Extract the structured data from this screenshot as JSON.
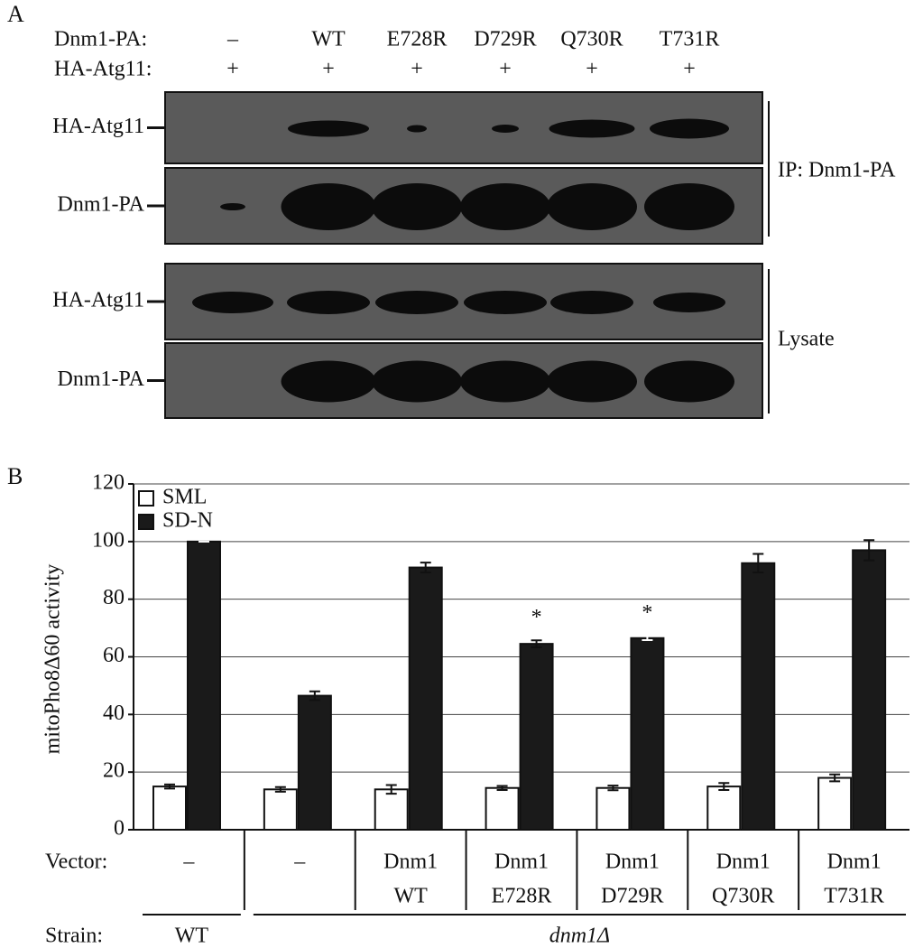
{
  "panel_a": {
    "label": "A",
    "header_rows": [
      {
        "label": "Dnm1-PA:",
        "lanes": [
          "–",
          "WT",
          "E728R",
          "D729R",
          "Q730R",
          "T731R"
        ]
      },
      {
        "label": "HA-Atg11:",
        "lanes": [
          "+",
          "+",
          "+",
          "+",
          "+",
          "+"
        ]
      }
    ],
    "blots": [
      "HA-Atg11",
      "Dnm1-PA",
      "HA-Atg11",
      "Dnm1-PA"
    ],
    "groups": [
      "IP: Dnm1-PA",
      "Lysate"
    ]
  },
  "chart_data": {
    "type": "bar",
    "panel_label": "B",
    "y_label": "mitoPho8Δ60 activity",
    "x_row_label": "Vector:",
    "categories": [
      [
        "–"
      ],
      [
        "–"
      ],
      [
        "Dnm1",
        "WT"
      ],
      [
        "Dnm1",
        "E728R"
      ],
      [
        "Dnm1",
        "D729R"
      ],
      [
        "Dnm1",
        "Q730R"
      ],
      [
        "Dnm1",
        "T731R"
      ]
    ],
    "series": [
      {
        "name": "SML",
        "color": "#ffffff",
        "values": [
          15,
          14,
          14,
          14.5,
          14.5,
          15,
          18
        ],
        "errors": [
          0.7,
          0.8,
          1.5,
          0.7,
          0.8,
          1.2,
          1.2
        ]
      },
      {
        "name": "SD-N",
        "color": "#1a1a1a",
        "values": [
          100,
          46.5,
          91,
          64.5,
          66.5,
          92.5,
          97
        ],
        "errors": [
          0,
          1.5,
          1.7,
          1.2,
          0.7,
          3.2,
          3.5
        ]
      }
    ],
    "annotations": [
      null,
      null,
      null,
      "*",
      "*",
      null,
      null
    ],
    "strain_label": "Strain:",
    "strains": [
      {
        "label": "WT",
        "from": 0,
        "to": 0
      },
      {
        "label": "dnm1Δ",
        "from": 1,
        "to": 6
      }
    ],
    "ylim": [
      0,
      120
    ],
    "yticks": [
      0,
      20,
      40,
      60,
      80,
      100,
      120
    ],
    "grid": true,
    "legend": "top-left"
  }
}
